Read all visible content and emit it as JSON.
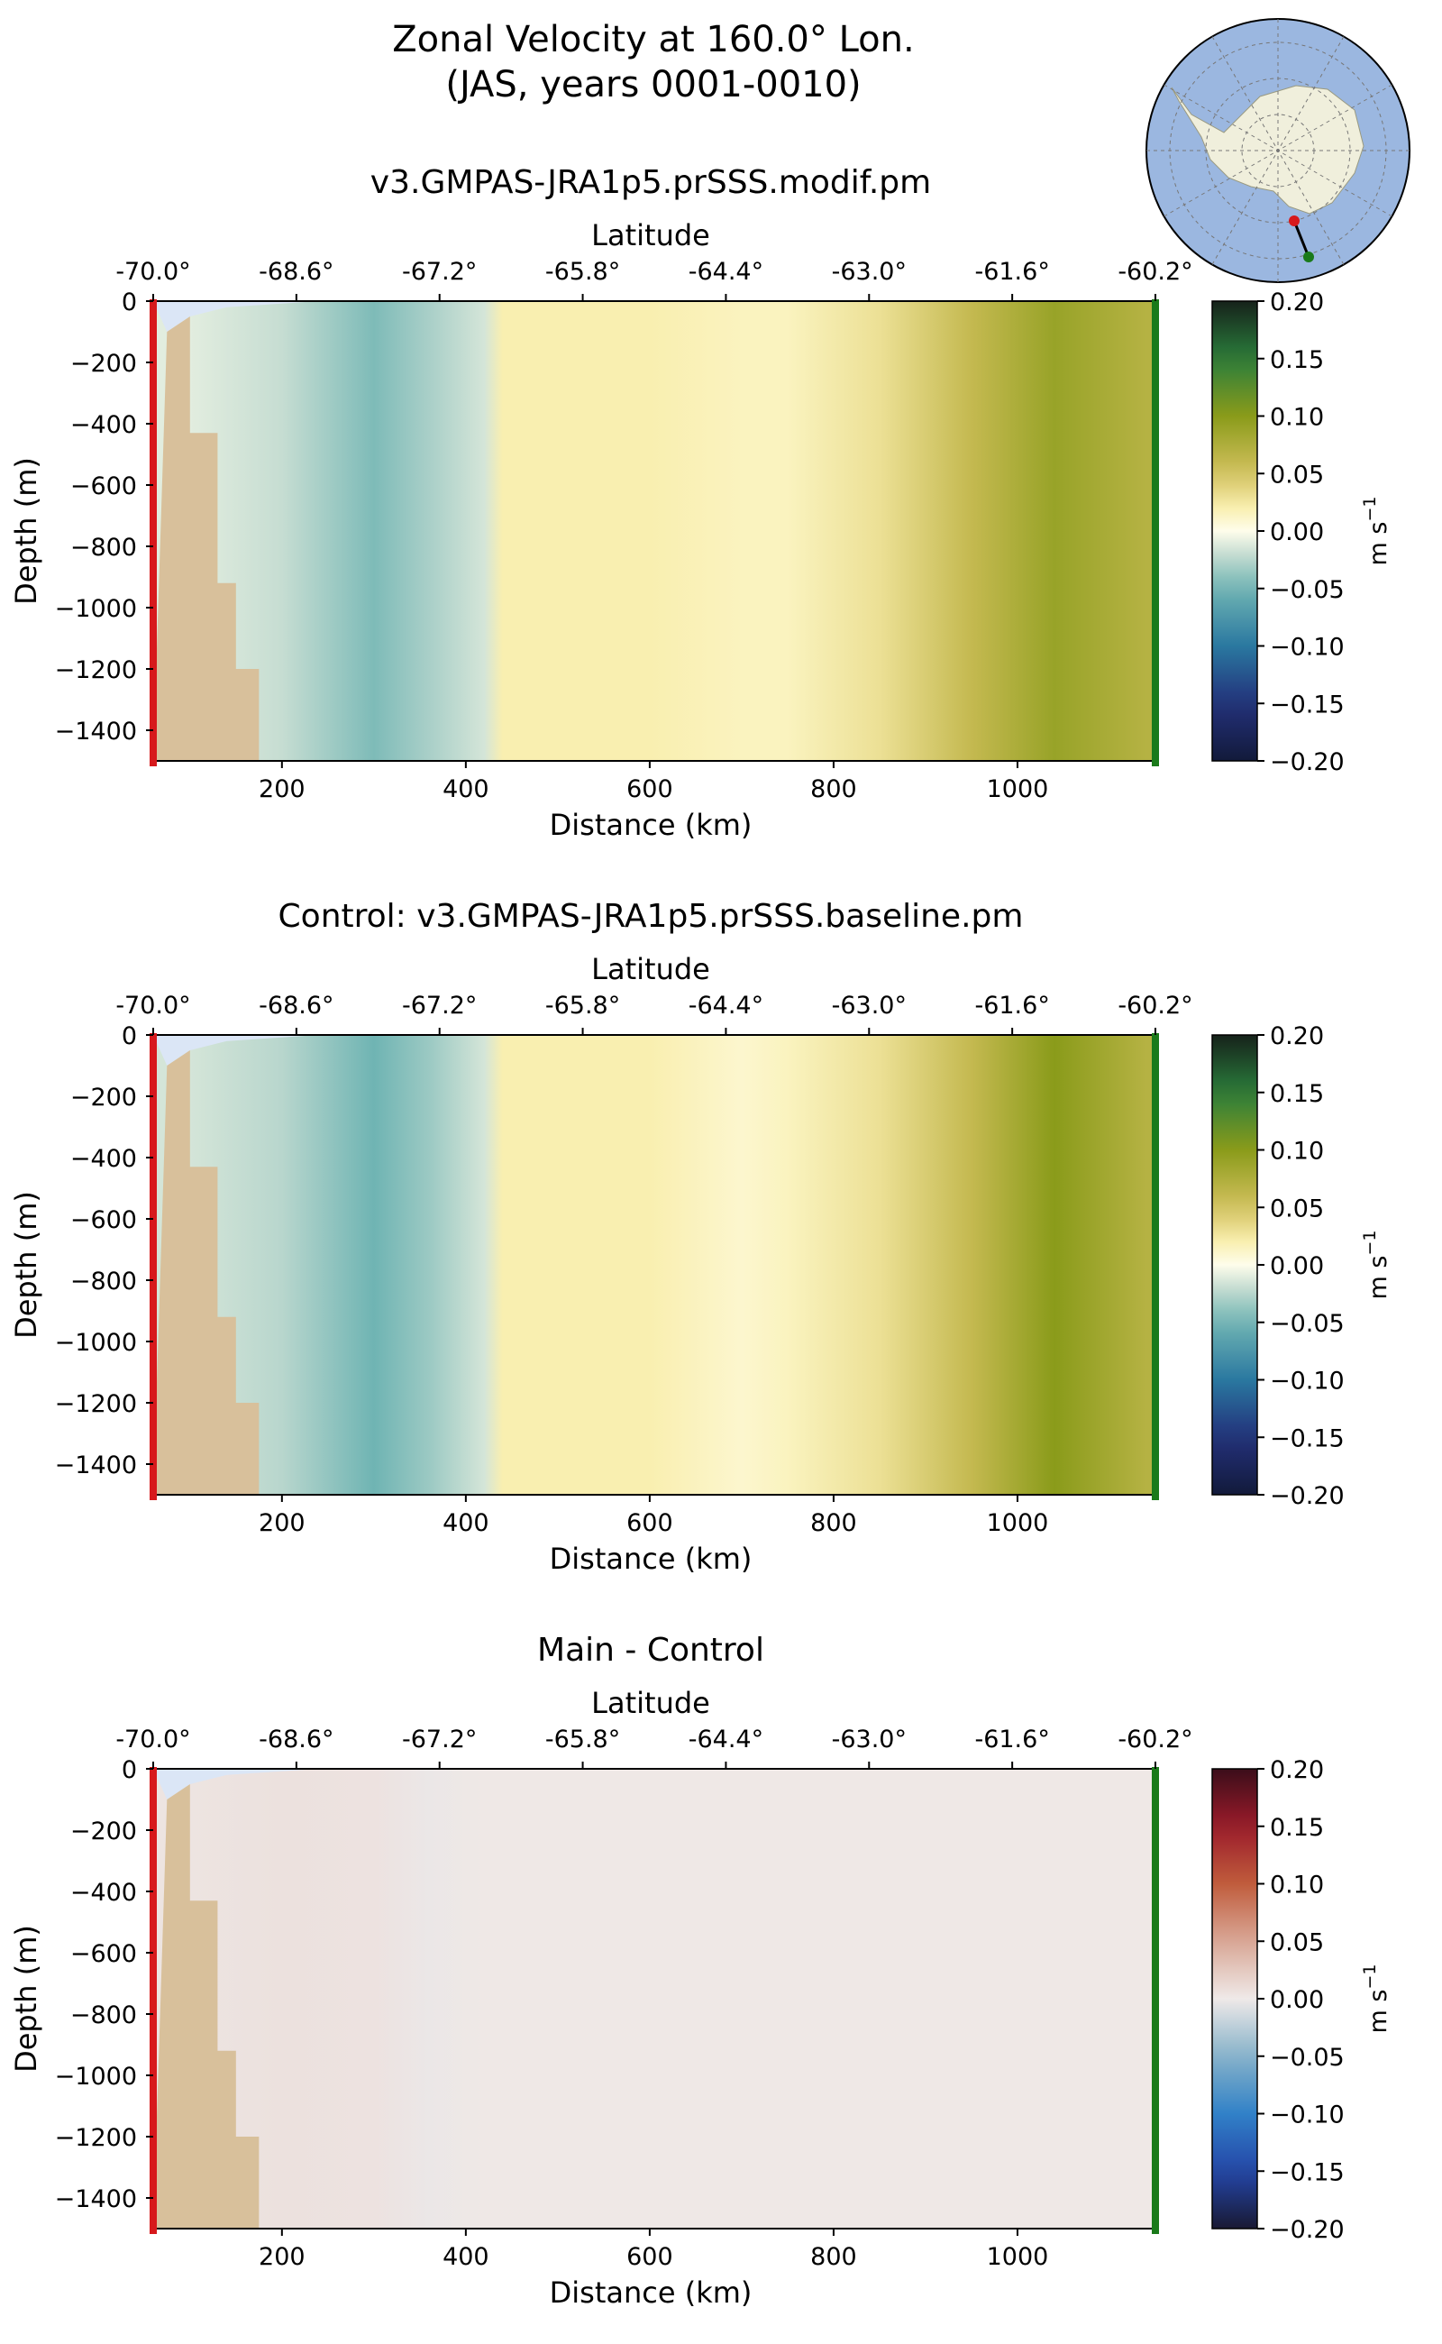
{
  "title": {
    "line1": "Zonal Velocity at 160.0° Lon.",
    "line2": "(JAS, years 0001-0010)"
  },
  "chart_data": [
    {
      "type": "heatmap",
      "title": "v3.GMPAS-JRA1p5.prSSS.modif.pm",
      "xlabel": "Distance (km)",
      "ylabel": "Depth (m)",
      "top_axis_label": "Latitude",
      "xlim": [
        60,
        1150
      ],
      "ylim": [
        -1500,
        0
      ],
      "x_ticks": [
        200,
        400,
        600,
        800,
        1000
      ],
      "y_ticks": [
        0,
        -200,
        -400,
        -600,
        -800,
        -1000,
        -1200,
        -1400
      ],
      "lat_ticks": [
        "-70.0°",
        "-68.6°",
        "-67.2°",
        "-65.8°",
        "-64.4°",
        "-63.0°",
        "-61.6°",
        "-60.2°"
      ],
      "colorbar": {
        "label": "m s",
        "exponent": "−1",
        "range": [
          -0.2,
          0.2
        ],
        "ticks": [
          "0.20",
          "0.15",
          "0.10",
          "0.05",
          "0.00",
          "−0.05",
          "−0.10",
          "−0.15",
          "−0.20"
        ],
        "colormap": "delta-like"
      },
      "velocity_profile_by_distance_km": [
        [
          100,
          -0.01
        ],
        [
          200,
          -0.02
        ],
        [
          300,
          -0.045
        ],
        [
          360,
          -0.03
        ],
        [
          420,
          -0.015
        ],
        [
          440,
          0.02
        ],
        [
          600,
          0.02
        ],
        [
          700,
          0.015
        ],
        [
          750,
          0.015
        ],
        [
          850,
          0.03
        ],
        [
          950,
          0.06
        ],
        [
          1040,
          0.09
        ],
        [
          1140,
          0.07
        ]
      ]
    },
    {
      "type": "heatmap",
      "title": "Control: v3.GMPAS-JRA1p5.prSSS.baseline.pm",
      "xlabel": "Distance (km)",
      "ylabel": "Depth (m)",
      "top_axis_label": "Latitude",
      "xlim": [
        60,
        1150
      ],
      "ylim": [
        -1500,
        0
      ],
      "x_ticks": [
        200,
        400,
        600,
        800,
        1000
      ],
      "y_ticks": [
        0,
        -200,
        -400,
        -600,
        -800,
        -1000,
        -1200,
        -1400
      ],
      "lat_ticks": [
        "-70.0°",
        "-68.6°",
        "-67.2°",
        "-65.8°",
        "-64.4°",
        "-63.0°",
        "-61.6°",
        "-60.2°"
      ],
      "colorbar": {
        "label": "m s",
        "exponent": "−1",
        "range": [
          -0.2,
          0.2
        ],
        "ticks": [
          "0.20",
          "0.15",
          "0.10",
          "0.05",
          "0.00",
          "−0.05",
          "−0.10",
          "−0.15",
          "−0.20"
        ],
        "colormap": "delta-like"
      },
      "velocity_profile_by_distance_km": [
        [
          100,
          -0.015
        ],
        [
          200,
          -0.025
        ],
        [
          300,
          -0.05
        ],
        [
          360,
          -0.035
        ],
        [
          420,
          -0.015
        ],
        [
          440,
          0.02
        ],
        [
          600,
          0.02
        ],
        [
          700,
          0.01
        ],
        [
          750,
          0.015
        ],
        [
          850,
          0.03
        ],
        [
          950,
          0.06
        ],
        [
          1040,
          0.1
        ],
        [
          1140,
          0.07
        ]
      ]
    },
    {
      "type": "heatmap",
      "title": "Main - Control",
      "xlabel": "Distance (km)",
      "ylabel": "Depth (m)",
      "top_axis_label": "Latitude",
      "xlim": [
        60,
        1150
      ],
      "ylim": [
        -1500,
        0
      ],
      "x_ticks": [
        200,
        400,
        600,
        800,
        1000
      ],
      "y_ticks": [
        0,
        -200,
        -400,
        -600,
        -800,
        -1000,
        -1200,
        -1400
      ],
      "lat_ticks": [
        "-70.0°",
        "-68.6°",
        "-67.2°",
        "-65.8°",
        "-64.4°",
        "-63.0°",
        "-61.6°",
        "-60.2°"
      ],
      "colorbar": {
        "label": "m s",
        "exponent": "−1",
        "range": [
          -0.2,
          0.2
        ],
        "ticks": [
          "0.20",
          "0.15",
          "0.10",
          "0.05",
          "0.00",
          "−0.05",
          "−0.10",
          "−0.15",
          "−0.20"
        ],
        "colormap": "balance-like"
      },
      "velocity_profile_by_distance_km": [
        [
          100,
          0.004
        ],
        [
          200,
          0.006
        ],
        [
          300,
          0.005
        ],
        [
          360,
          -0.002
        ],
        [
          420,
          0.001
        ],
        [
          600,
          0.001
        ],
        [
          800,
          0.001
        ],
        [
          1000,
          0.001
        ],
        [
          1140,
          0.001
        ]
      ]
    }
  ],
  "bathymetry_steps_km_depth": [
    [
      60,
      -1500
    ],
    [
      75,
      -100
    ],
    [
      100,
      -50
    ],
    [
      100,
      -430
    ],
    [
      130,
      -430
    ],
    [
      130,
      -920
    ],
    [
      150,
      -920
    ],
    [
      150,
      -1200
    ],
    [
      175,
      -1200
    ],
    [
      175,
      -1500
    ]
  ],
  "section_endpoints": {
    "start_color": "#d7191c",
    "end_color": "#1a7a1a"
  },
  "colors": {
    "land": "#d8c09b",
    "ocean_map": "#9bb7e0",
    "antarctica": "#f0efdc",
    "gap_fill": "#dbe6f6"
  }
}
